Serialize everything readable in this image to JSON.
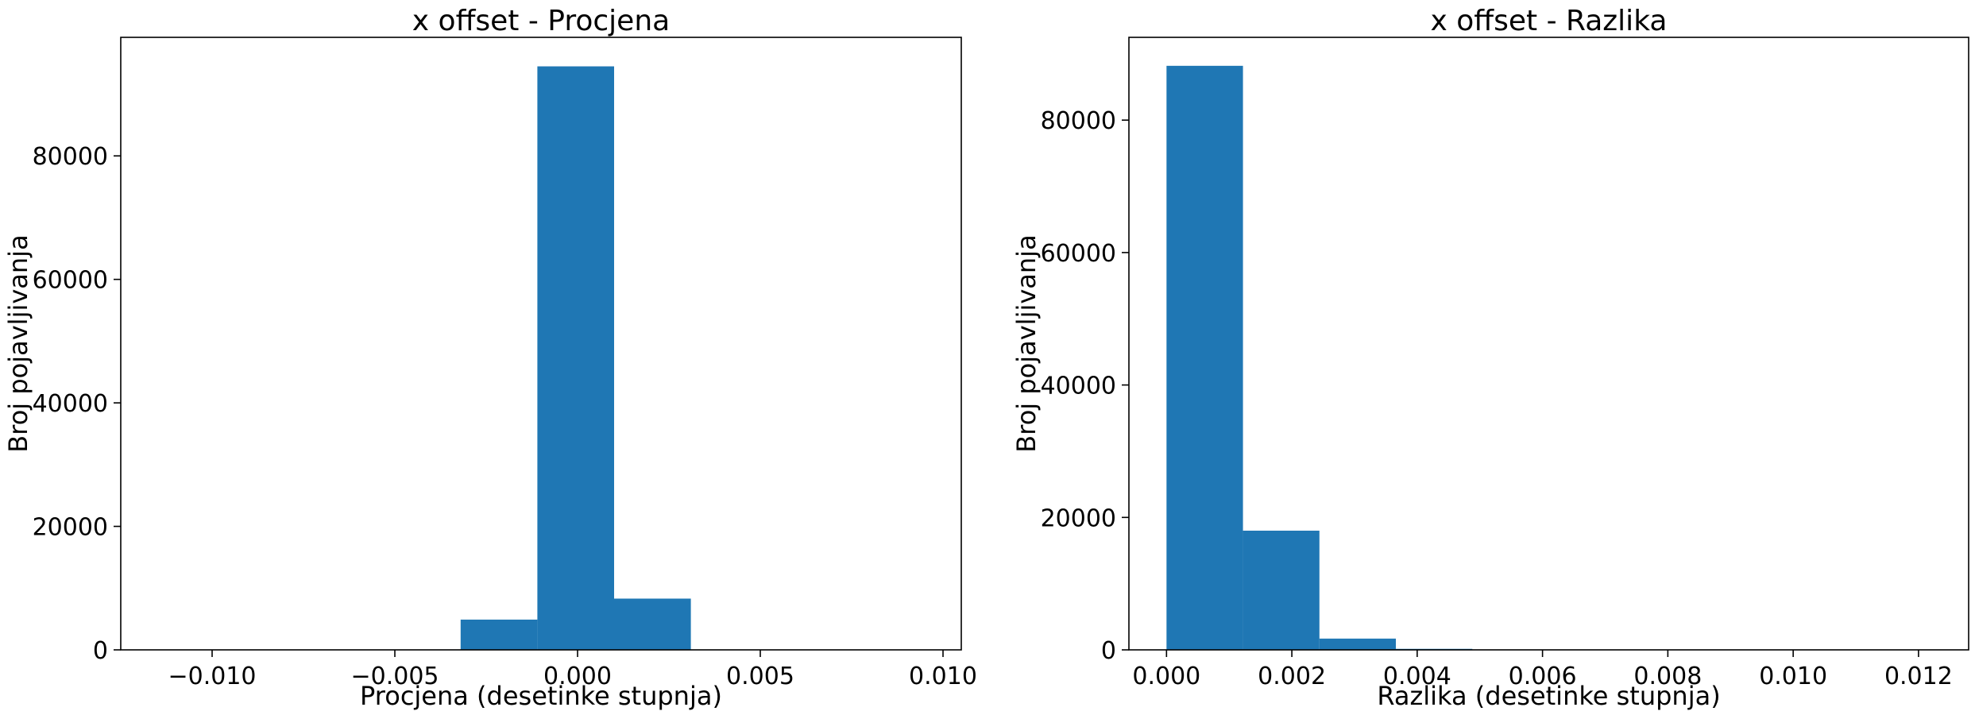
{
  "chart_data": [
    {
      "type": "bar",
      "title": "x offset - Procjena",
      "xlabel": "Procjena (desetinke stupnja)",
      "ylabel": "Broj pojavljivanja",
      "xlim": [
        -0.0125,
        0.0105
      ],
      "ylim": [
        0,
        99200
      ],
      "xticks": [
        -0.01,
        -0.005,
        0.0,
        0.005,
        0.01
      ],
      "xtick_labels": [
        "−0.010",
        "−0.005",
        "0.000",
        "0.005",
        "0.010"
      ],
      "yticks": [
        0,
        20000,
        40000,
        60000,
        80000
      ],
      "ytick_labels": [
        "0",
        "20000",
        "40000",
        "60000",
        "80000"
      ],
      "bin_edges": [
        -0.0112,
        -0.0093,
        -0.0073,
        -0.0052,
        -0.0032,
        -0.0011,
        0.001,
        0.0031,
        0.0051,
        0.0072,
        0.0093
      ],
      "values": [
        0,
        0,
        0,
        0,
        4900,
        94500,
        8300,
        0,
        0,
        0
      ],
      "color": "#1f77b4",
      "grid": false
    },
    {
      "type": "bar",
      "title": "x offset - Razlika",
      "xlabel": "Razlika (desetinke stupnja)",
      "ylabel": "Broj pojavljivanja",
      "xlim": [
        -0.0006,
        0.0128
      ],
      "ylim": [
        0,
        92500
      ],
      "xticks": [
        0.0,
        0.002,
        0.004,
        0.006,
        0.008,
        0.01,
        0.012
      ],
      "xtick_labels": [
        "0.000",
        "0.002",
        "0.004",
        "0.006",
        "0.008",
        "0.010",
        "0.012"
      ],
      "yticks": [
        0,
        20000,
        40000,
        60000,
        80000
      ],
      "ytick_labels": [
        "0",
        "20000",
        "40000",
        "60000",
        "80000"
      ],
      "bin_edges": [
        0.0,
        0.00122,
        0.00244,
        0.00366,
        0.00488,
        0.0061,
        0.00732,
        0.00854,
        0.00976,
        0.01098,
        0.0122
      ],
      "values": [
        88200,
        18000,
        1700,
        150,
        0,
        0,
        0,
        0,
        0,
        0
      ],
      "color": "#1f77b4",
      "grid": false
    }
  ]
}
